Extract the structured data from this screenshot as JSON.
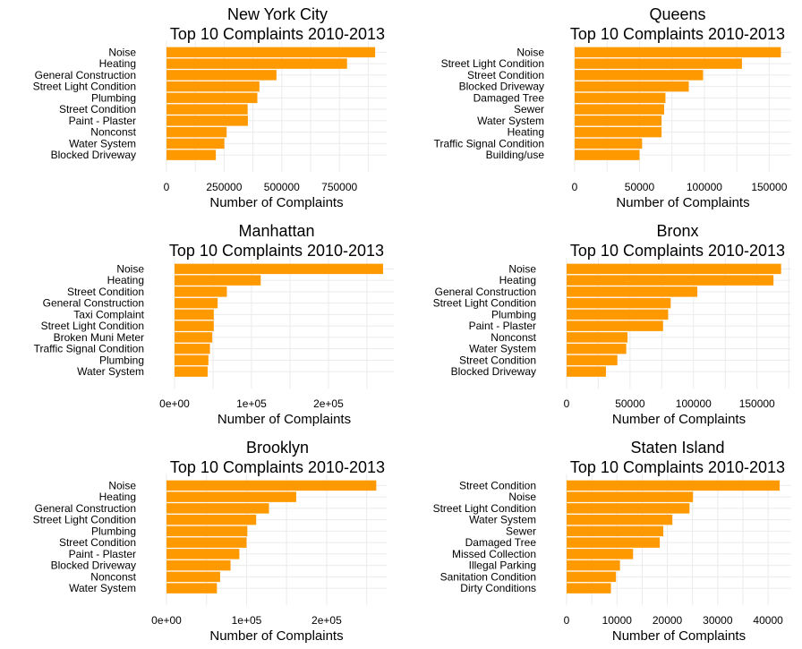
{
  "colors": {
    "bar": "#FF9900",
    "grid": "#EBEBEB"
  },
  "chart_data": [
    {
      "type": "bar",
      "orientation": "horizontal",
      "title": "New York City",
      "subtitle": "Top 10 Complaints 2010-2013",
      "xlabel": "Number of Complaints",
      "categories": [
        "Noise",
        "Heating",
        "General Construction",
        "Street Light Condition",
        "Plumbing",
        "Street Condition",
        "Paint - Plaster",
        "Nonconst",
        "Water System",
        "Blocked Driveway"
      ],
      "values": [
        905000,
        783000,
        477000,
        403000,
        394000,
        352000,
        353000,
        261000,
        251000,
        214000
      ],
      "xlim": [
        0,
        955000
      ],
      "ticks": [
        0,
        250000,
        500000,
        750000
      ],
      "tick_labels": [
        "0",
        "250000",
        "500000",
        "750000"
      ]
    },
    {
      "type": "bar",
      "orientation": "horizontal",
      "title": "Queens",
      "subtitle": "Top 10 Complaints 2010-2013",
      "xlabel": "Number of Complaints",
      "categories": [
        "Noise",
        "Street Light Condition",
        "Street Condition",
        "Blocked Driveway",
        "Damaged Tree",
        "Sewer",
        "Water System",
        "Heating",
        "Traffic Signal Condition",
        "Building/use"
      ],
      "values": [
        159000,
        129000,
        99000,
        88000,
        70000,
        69000,
        67000,
        67000,
        52000,
        50000
      ],
      "xlim": [
        0,
        167000
      ],
      "ticks": [
        0,
        50000,
        100000,
        150000
      ],
      "tick_labels": [
        "0",
        "50000",
        "100000",
        "150000"
      ]
    },
    {
      "type": "bar",
      "orientation": "horizontal",
      "title": "Manhattan",
      "subtitle": "Top 10 Complaints 2010-2013",
      "xlabel": "Number of Complaints",
      "categories": [
        "Noise",
        "Heating",
        "Street Condition",
        "General Construction",
        "Taxi Complaint",
        "Street Light Condition",
        "Broken Muni Meter",
        "Traffic Signal Condition",
        "Plumbing",
        "Water System"
      ],
      "values": [
        271000,
        112000,
        68000,
        56000,
        51000,
        51000,
        49000,
        46000,
        44000,
        43000
      ],
      "xlim": [
        0,
        285000
      ],
      "ticks": [
        0,
        100000,
        200000
      ],
      "tick_labels": [
        "0e+00",
        "1e+05",
        "2e+05"
      ]
    },
    {
      "type": "bar",
      "orientation": "horizontal",
      "title": "Bronx",
      "subtitle": "Top 10 Complaints 2010-2013",
      "xlabel": "Number of Complaints",
      "categories": [
        "Noise",
        "Heating",
        "General Construction",
        "Street Light Condition",
        "Plumbing",
        "Paint - Plaster",
        "Nonconst",
        "Water System",
        "Street Condition",
        "Blocked Driveway"
      ],
      "values": [
        169000,
        163000,
        103000,
        82000,
        80000,
        76000,
        48000,
        47000,
        40000,
        31000
      ],
      "xlim": [
        0,
        177000
      ],
      "ticks": [
        0,
        50000,
        100000,
        150000
      ],
      "tick_labels": [
        "0",
        "50000",
        "100000",
        "150000"
      ]
    },
    {
      "type": "bar",
      "orientation": "horizontal",
      "title": "Brooklyn",
      "subtitle": "Top 10 Complaints 2010-2013",
      "xlabel": "Number of Complaints",
      "categories": [
        "Noise",
        "Heating",
        "General Construction",
        "Street Light Condition",
        "Plumbing",
        "Street Condition",
        "Paint - Plaster",
        "Blocked Driveway",
        "Nonconst",
        "Water System"
      ],
      "values": [
        262000,
        162000,
        128000,
        112000,
        101000,
        100000,
        91000,
        80000,
        67000,
        63000
      ],
      "xlim": [
        0,
        275000
      ],
      "ticks": [
        0,
        100000,
        200000
      ],
      "tick_labels": [
        "0e+00",
        "1e+05",
        "2e+05"
      ]
    },
    {
      "type": "bar",
      "orientation": "horizontal",
      "title": "Staten Island",
      "subtitle": "Top 10 Complaints 2010-2013",
      "xlabel": "Number of Complaints",
      "categories": [
        "Street Condition",
        "Noise",
        "Street Light Condition",
        "Water System",
        "Sewer",
        "Damaged Tree",
        "Missed Collection",
        "Illegal Parking",
        "Sanitation Condition",
        "Dirty Conditions"
      ],
      "values": [
        42300,
        25100,
        24400,
        21000,
        19200,
        18500,
        13200,
        10600,
        9800,
        8800
      ],
      "xlim": [
        0,
        44600
      ],
      "ticks": [
        0,
        10000,
        20000,
        30000,
        40000
      ],
      "tick_labels": [
        "0",
        "10000",
        "20000",
        "30000",
        "40000"
      ]
    }
  ]
}
